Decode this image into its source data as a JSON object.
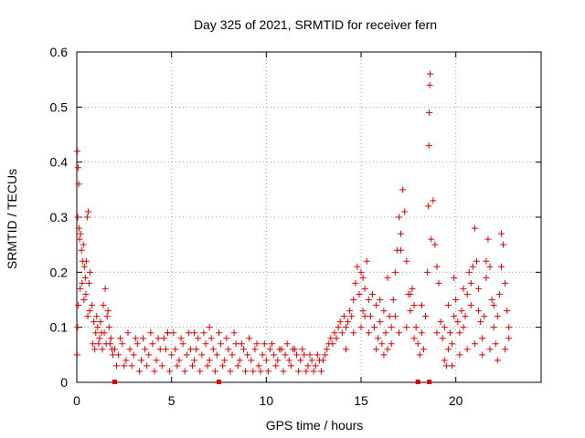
{
  "chart_data": {
    "type": "scatter",
    "title": "Day 325 of 2021, SRMTID for receiver fern",
    "xlabel": "GPS time / hours",
    "ylabel": "SRMTID / TECUs",
    "xlim": [
      0,
      24.5
    ],
    "ylim": [
      0,
      0.6
    ],
    "xticks": [
      0,
      5,
      10,
      15,
      20
    ],
    "yticks": [
      0,
      0.1,
      0.2,
      0.3,
      0.4,
      0.5,
      0.6
    ],
    "grid": true,
    "marker": "plus",
    "color": "#e00000",
    "series": [
      {
        "name": "SRMTID",
        "points": [
          [
            0.03,
            0.42
          ],
          [
            0.07,
            0.39
          ],
          [
            0.1,
            0.36
          ],
          [
            0.05,
            0.3
          ],
          [
            0.12,
            0.28
          ],
          [
            0.15,
            0.26
          ],
          [
            0.2,
            0.27
          ],
          [
            0.25,
            0.24
          ],
          [
            0.3,
            0.22
          ],
          [
            0.35,
            0.25
          ],
          [
            0.4,
            0.21
          ],
          [
            0.45,
            0.19
          ],
          [
            0.5,
            0.22
          ],
          [
            0.55,
            0.3
          ],
          [
            0.6,
            0.31
          ],
          [
            0.65,
            0.18
          ],
          [
            0.7,
            0.2
          ],
          [
            0.08,
            0.14
          ],
          [
            0.18,
            0.17
          ],
          [
            0.28,
            0.18
          ],
          [
            0.38,
            0.15
          ],
          [
            0.48,
            0.16
          ],
          [
            0.58,
            0.12
          ],
          [
            0.68,
            0.13
          ],
          [
            0.02,
            0.05
          ],
          [
            0.04,
            0.1
          ],
          [
            0.8,
            0.14
          ],
          [
            0.9,
            0.11
          ],
          [
            1.0,
            0.09
          ],
          [
            1.1,
            0.1
          ],
          [
            1.2,
            0.08
          ],
          [
            1.3,
            0.09
          ],
          [
            1.4,
            0.14
          ],
          [
            1.5,
            0.17
          ],
          [
            1.6,
            0.12
          ],
          [
            1.7,
            0.1
          ],
          [
            1.8,
            0.08
          ],
          [
            0.85,
            0.07
          ],
          [
            0.95,
            0.06
          ],
          [
            1.05,
            0.12
          ],
          [
            1.15,
            0.07
          ],
          [
            1.25,
            0.11
          ],
          [
            1.35,
            0.06
          ],
          [
            1.45,
            0.09
          ],
          [
            1.55,
            0.07
          ],
          [
            1.65,
            0.13
          ],
          [
            1.75,
            0.07
          ],
          [
            1.85,
            0.06
          ],
          [
            1.9,
            0.05
          ],
          [
            2.0,
            0.06
          ],
          [
            2.2,
            0.05
          ],
          [
            2.4,
            0.07
          ],
          [
            2.6,
            0.04
          ],
          [
            2.8,
            0.06
          ],
          [
            3.0,
            0.05
          ],
          [
            3.2,
            0.07
          ],
          [
            3.4,
            0.04
          ],
          [
            3.6,
            0.06
          ],
          [
            3.8,
            0.05
          ],
          [
            4.0,
            0.07
          ],
          [
            4.2,
            0.04
          ],
          [
            4.4,
            0.06
          ],
          [
            4.6,
            0.08
          ],
          [
            4.8,
            0.09
          ],
          [
            5.0,
            0.05
          ],
          [
            5.2,
            0.06
          ],
          [
            5.4,
            0.04
          ],
          [
            5.6,
            0.07
          ],
          [
            5.8,
            0.05
          ],
          [
            6.0,
            0.06
          ],
          [
            6.2,
            0.04
          ],
          [
            6.4,
            0.08
          ],
          [
            6.6,
            0.05
          ],
          [
            6.8,
            0.07
          ],
          [
            7.0,
            0.04
          ],
          [
            7.2,
            0.06
          ],
          [
            7.4,
            0.05
          ],
          [
            7.6,
            0.07
          ],
          [
            7.8,
            0.04
          ],
          [
            8.0,
            0.06
          ],
          [
            8.2,
            0.05
          ],
          [
            8.4,
            0.07
          ],
          [
            8.6,
            0.04
          ],
          [
            8.8,
            0.06
          ],
          [
            9.0,
            0.05
          ],
          [
            9.2,
            0.04
          ],
          [
            9.4,
            0.06
          ],
          [
            9.6,
            0.03
          ],
          [
            9.8,
            0.05
          ],
          [
            10.0,
            0.04
          ],
          [
            10.2,
            0.06
          ],
          [
            10.4,
            0.05
          ],
          [
            10.6,
            0.04
          ],
          [
            10.8,
            0.06
          ],
          [
            11.0,
            0.05
          ],
          [
            11.2,
            0.04
          ],
          [
            11.4,
            0.06
          ],
          [
            11.6,
            0.05
          ],
          [
            11.8,
            0.04
          ],
          [
            12.0,
            0.05
          ],
          [
            12.2,
            0.03
          ],
          [
            12.4,
            0.04
          ],
          [
            12.6,
            0.03
          ],
          [
            12.8,
            0.04
          ],
          [
            2.1,
            0.03
          ],
          [
            2.3,
            0.08
          ],
          [
            2.5,
            0.03
          ],
          [
            2.7,
            0.09
          ],
          [
            2.9,
            0.03
          ],
          [
            3.1,
            0.08
          ],
          [
            3.3,
            0.02
          ],
          [
            3.5,
            0.08
          ],
          [
            3.7,
            0.03
          ],
          [
            3.9,
            0.09
          ],
          [
            4.1,
            0.02
          ],
          [
            4.3,
            0.08
          ],
          [
            4.5,
            0.03
          ],
          [
            4.7,
            0.06
          ],
          [
            4.9,
            0.02
          ],
          [
            5.1,
            0.09
          ],
          [
            5.3,
            0.03
          ],
          [
            5.5,
            0.08
          ],
          [
            5.7,
            0.02
          ],
          [
            5.9,
            0.09
          ],
          [
            6.1,
            0.03
          ],
          [
            6.3,
            0.06
          ],
          [
            6.5,
            0.02
          ],
          [
            6.7,
            0.09
          ],
          [
            6.9,
            0.03
          ],
          [
            7.1,
            0.08
          ],
          [
            7.3,
            0.02
          ],
          [
            7.5,
            0.09
          ],
          [
            7.7,
            0.03
          ],
          [
            7.9,
            0.08
          ],
          [
            8.1,
            0.02
          ],
          [
            8.3,
            0.09
          ],
          [
            8.5,
            0.03
          ],
          [
            8.7,
            0.07
          ],
          [
            8.9,
            0.02
          ],
          [
            9.1,
            0.08
          ],
          [
            9.3,
            0.02
          ],
          [
            9.5,
            0.07
          ],
          [
            9.7,
            0.02
          ],
          [
            9.9,
            0.07
          ],
          [
            10.1,
            0.02
          ],
          [
            10.3,
            0.07
          ],
          [
            10.5,
            0.03
          ],
          [
            10.7,
            0.06
          ],
          [
            10.9,
            0.02
          ],
          [
            11.1,
            0.07
          ],
          [
            11.3,
            0.03
          ],
          [
            11.5,
            0.06
          ],
          [
            11.7,
            0.02
          ],
          [
            11.9,
            0.06
          ],
          [
            12.1,
            0.02
          ],
          [
            12.3,
            0.05
          ],
          [
            12.5,
            0.02
          ],
          [
            12.7,
            0.05
          ],
          [
            12.9,
            0.02
          ],
          [
            7.0,
            0.1
          ],
          [
            4.8,
            0.09
          ],
          [
            6.2,
            0.09
          ],
          [
            13.0,
            0.04
          ],
          [
            13.1,
            0.05
          ],
          [
            13.2,
            0.06
          ],
          [
            13.3,
            0.07
          ],
          [
            13.4,
            0.08
          ],
          [
            13.5,
            0.07
          ],
          [
            13.6,
            0.09
          ],
          [
            13.7,
            0.08
          ],
          [
            13.8,
            0.1
          ],
          [
            13.9,
            0.11
          ],
          [
            14.0,
            0.09
          ],
          [
            14.1,
            0.12
          ],
          [
            14.2,
            0.1
          ],
          [
            14.3,
            0.11
          ],
          [
            14.4,
            0.13
          ],
          [
            14.5,
            0.12
          ],
          [
            14.6,
            0.15
          ],
          [
            14.7,
            0.18
          ],
          [
            14.8,
            0.21
          ],
          [
            14.9,
            0.16
          ],
          [
            15.0,
            0.2
          ],
          [
            15.1,
            0.13
          ],
          [
            15.2,
            0.17
          ],
          [
            15.3,
            0.22
          ],
          [
            15.4,
            0.15
          ],
          [
            15.5,
            0.12
          ],
          [
            15.6,
            0.16
          ],
          [
            15.7,
            0.1
          ],
          [
            15.8,
            0.14
          ],
          [
            15.9,
            0.08
          ],
          [
            16.0,
            0.11
          ],
          [
            16.1,
            0.07
          ],
          [
            16.2,
            0.13
          ],
          [
            16.3,
            0.09
          ],
          [
            16.4,
            0.06
          ],
          [
            16.5,
            0.12
          ],
          [
            16.6,
            0.1
          ],
          [
            16.7,
            0.15
          ],
          [
            16.8,
            0.2
          ],
          [
            16.9,
            0.24
          ],
          [
            17.0,
            0.3
          ],
          [
            17.1,
            0.27
          ],
          [
            17.2,
            0.35
          ],
          [
            17.3,
            0.31
          ],
          [
            17.4,
            0.22
          ],
          [
            17.5,
            0.16
          ],
          [
            17.6,
            0.13
          ],
          [
            17.7,
            0.17
          ],
          [
            17.8,
            0.14
          ],
          [
            17.9,
            0.1
          ],
          [
            18.0,
            0.07
          ],
          [
            18.1,
            0.05
          ],
          [
            18.2,
            0.09
          ],
          [
            18.3,
            0.06
          ],
          [
            18.4,
            0.12
          ],
          [
            18.5,
            0.2
          ],
          [
            18.55,
            0.32
          ],
          [
            18.6,
            0.49
          ],
          [
            18.62,
            0.54
          ],
          [
            18.64,
            0.56
          ],
          [
            18.58,
            0.43
          ],
          [
            18.7,
            0.26
          ],
          [
            18.8,
            0.33
          ],
          [
            18.9,
            0.25
          ],
          [
            19.0,
            0.21
          ],
          [
            19.1,
            0.18
          ],
          [
            19.2,
            0.11
          ],
          [
            19.3,
            0.08
          ],
          [
            19.4,
            0.04
          ],
          [
            19.5,
            0.03
          ],
          [
            19.6,
            0.06
          ],
          [
            19.7,
            0.09
          ],
          [
            19.8,
            0.07
          ],
          [
            19.9,
            0.12
          ],
          [
            20.0,
            0.15
          ],
          [
            20.1,
            0.11
          ],
          [
            20.2,
            0.09
          ],
          [
            20.3,
            0.13
          ],
          [
            20.4,
            0.17
          ],
          [
            20.5,
            0.12
          ],
          [
            20.6,
            0.16
          ],
          [
            20.7,
            0.2
          ],
          [
            20.8,
            0.14
          ],
          [
            20.9,
            0.21
          ],
          [
            21.0,
            0.28
          ],
          [
            21.1,
            0.22
          ],
          [
            21.2,
            0.17
          ],
          [
            21.3,
            0.11
          ],
          [
            21.4,
            0.08
          ],
          [
            21.5,
            0.12
          ],
          [
            21.6,
            0.19
          ],
          [
            21.7,
            0.26
          ],
          [
            21.8,
            0.21
          ],
          [
            21.9,
            0.15
          ],
          [
            22.0,
            0.1
          ],
          [
            22.1,
            0.07
          ],
          [
            22.2,
            0.12
          ],
          [
            22.3,
            0.16
          ],
          [
            22.4,
            0.21
          ],
          [
            22.5,
            0.25
          ],
          [
            22.6,
            0.18
          ],
          [
            22.7,
            0.13
          ],
          [
            22.8,
            0.1
          ],
          [
            14.2,
            0.06
          ],
          [
            14.6,
            0.09
          ],
          [
            15.0,
            0.1
          ],
          [
            15.4,
            0.09
          ],
          [
            15.8,
            0.06
          ],
          [
            16.2,
            0.05
          ],
          [
            16.6,
            0.07
          ],
          [
            17.0,
            0.09
          ],
          [
            17.4,
            0.1
          ],
          [
            17.8,
            0.08
          ],
          [
            19.0,
            0.09
          ],
          [
            19.4,
            0.1
          ],
          [
            19.8,
            0.03
          ],
          [
            20.2,
            0.05
          ],
          [
            20.6,
            0.06
          ],
          [
            21.0,
            0.07
          ],
          [
            21.4,
            0.05
          ],
          [
            21.8,
            0.06
          ],
          [
            22.2,
            0.04
          ],
          [
            22.6,
            0.06
          ],
          [
            15.2,
            0.12
          ],
          [
            16.0,
            0.15
          ],
          [
            16.8,
            0.12
          ],
          [
            17.6,
            0.16
          ],
          [
            18.2,
            0.14
          ],
          [
            19.6,
            0.14
          ],
          [
            20.4,
            0.1
          ],
          [
            21.2,
            0.13
          ],
          [
            22.0,
            0.14
          ],
          [
            22.8,
            0.08
          ],
          [
            17.1,
            0.24
          ],
          [
            21.6,
            0.22
          ],
          [
            22.4,
            0.27
          ],
          [
            19.9,
            0.19
          ],
          [
            20.8,
            0.18
          ],
          [
            16.4,
            0.19
          ],
          [
            15.1,
            0.19
          ]
        ]
      }
    ],
    "bottom_markers_x": [
      2.0,
      7.5,
      18.0,
      18.6
    ]
  }
}
